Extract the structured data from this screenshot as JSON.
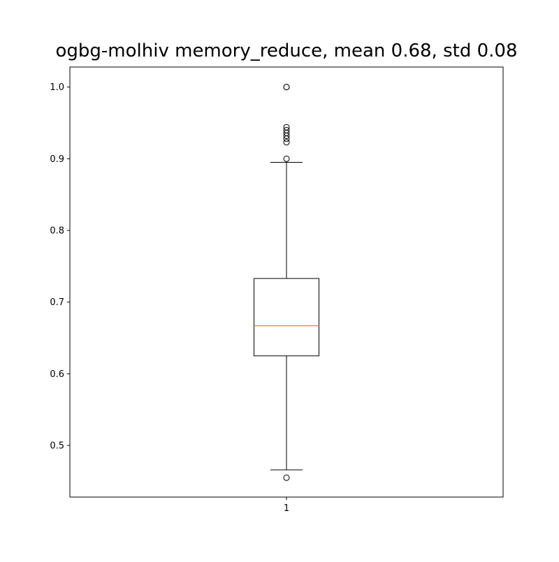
{
  "chart_data": {
    "type": "box",
    "title": "ogbg-molhiv memory_reduce, mean 0.68, std 0.08",
    "xlabel": "",
    "ylabel": "",
    "categories": [
      "1"
    ],
    "ylim": [
      0.428,
      1.028
    ],
    "yticks": [
      0.5,
      0.6,
      0.7,
      0.8,
      0.9,
      1.0
    ],
    "ytick_labels": [
      "0.5",
      "0.6",
      "0.7",
      "0.8",
      "0.9",
      "1.0"
    ],
    "grid": false,
    "boxes": [
      {
        "category": "1",
        "whisker_low": 0.466,
        "q1": 0.625,
        "median": 0.667,
        "q3": 0.733,
        "whisker_high": 0.895,
        "outliers": [
          0.455,
          0.9,
          0.923,
          0.928,
          0.932,
          0.936,
          0.94,
          0.944,
          1.0,
          1.0
        ]
      }
    ],
    "colors": {
      "box": "#000000",
      "median": "#ff7f0e"
    }
  }
}
